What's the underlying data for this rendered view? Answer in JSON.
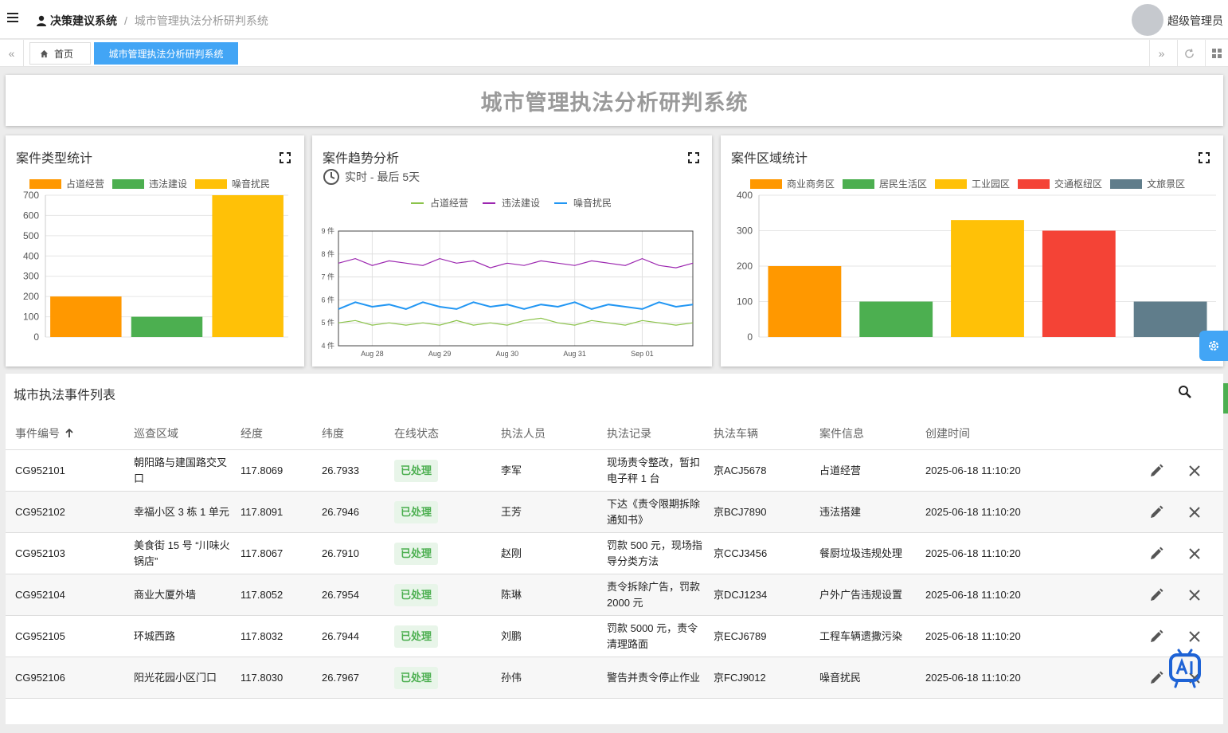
{
  "app": {
    "breadcrumb_root": "决策建议系统",
    "breadcrumb_sep": "/",
    "breadcrumb_current": "城市管理执法分析研判系统",
    "username": "超级管理员"
  },
  "tabs": [
    {
      "label": "首页",
      "icon": "home-icon"
    },
    {
      "label": "城市管理执法分析研判系统",
      "active": true
    }
  ],
  "page_title": "城市管理执法分析研判系统",
  "chart_data": [
    {
      "type": "bar",
      "title": "案件类型统计",
      "categories": [
        "占道经营",
        "违法建设",
        "噪音扰民"
      ],
      "values": [
        200,
        100,
        700
      ],
      "colors": [
        "#ff9800",
        "#4caf50",
        "#ffc107"
      ],
      "yticks": [
        0,
        100,
        200,
        300,
        400,
        500,
        600,
        700
      ],
      "ylim": [
        0,
        700
      ],
      "legend": "top",
      "grid": true
    },
    {
      "type": "line",
      "title": "案件趋势分析",
      "subtitle": "实时 - 最后 5天",
      "x": [
        "2025-08-27 12:00",
        "2025-08-27 18:00",
        "2025-08-28 00:00",
        "2025-08-28 06:00",
        "2025-08-28 12:00",
        "2025-08-28 18:00",
        "2025-08-29 00:00",
        "2025-08-29 06:00",
        "2025-08-29 12:00",
        "2025-08-29 18:00",
        "2025-08-30 00:00",
        "2025-08-30 06:00",
        "2025-08-30 12:00",
        "2025-08-30 18:00",
        "2025-08-31 00:00",
        "2025-08-31 06:00",
        "2025-08-31 12:00",
        "2025-08-31 18:00",
        "2025-09-01 00:00",
        "2025-09-01 06:00",
        "2025-09-01 12:00",
        "2025-09-01 18:00"
      ],
      "xticks": [
        "Aug 28",
        "Aug 29",
        "Aug 30",
        "Aug 31",
        "Sep 01"
      ],
      "yticks": [
        "4 件",
        "5 件",
        "6 件",
        "7 件",
        "8 件",
        "9 件"
      ],
      "ylim": [
        4,
        9
      ],
      "legend": "top",
      "grid": true,
      "series": [
        {
          "name": "占道经营",
          "color": "#8bc34a",
          "values": [
            5.0,
            5.1,
            4.9,
            5.0,
            4.9,
            5.0,
            4.9,
            5.1,
            4.9,
            5.0,
            4.9,
            5.1,
            5.2,
            5.0,
            4.9,
            5.1,
            5.0,
            4.9,
            5.1,
            5.0,
            4.9,
            5.0
          ]
        },
        {
          "name": "违法建设",
          "color": "#9c27b0",
          "values": [
            7.6,
            7.8,
            7.5,
            7.7,
            7.6,
            7.5,
            7.8,
            7.6,
            7.7,
            7.4,
            7.6,
            7.5,
            7.7,
            7.6,
            7.5,
            7.7,
            7.6,
            7.5,
            7.8,
            7.5,
            7.4,
            7.6
          ]
        },
        {
          "name": "噪音扰民",
          "color": "#2196f3",
          "values": [
            5.6,
            5.9,
            5.7,
            5.8,
            5.6,
            5.9,
            5.7,
            5.6,
            5.9,
            5.7,
            5.8,
            5.6,
            5.8,
            5.7,
            5.9,
            5.6,
            5.8,
            5.7,
            5.6,
            5.9,
            5.7,
            5.8
          ]
        }
      ]
    },
    {
      "type": "bar",
      "title": "案件区域统计",
      "categories": [
        "商业商务区",
        "居民生活区",
        "工业园区",
        "交通枢纽区",
        "文旅景区"
      ],
      "values": [
        200,
        100,
        330,
        300,
        100
      ],
      "colors": [
        "#ff9800",
        "#4caf50",
        "#ffc107",
        "#f44336",
        "#607d8b"
      ],
      "yticks": [
        0,
        100,
        200,
        300,
        400
      ],
      "ylim": [
        0,
        400
      ],
      "legend": "top",
      "grid": true
    }
  ],
  "table": {
    "title": "城市执法事件列表",
    "columns": [
      "事件编号",
      "巡查区域",
      "经度",
      "纬度",
      "在线状态",
      "执法人员",
      "执法记录",
      "执法车辆",
      "案件信息",
      "创建时间"
    ],
    "sort_icon": "arrow-up-icon",
    "rows": [
      {
        "id": "CG952101",
        "area": "朝阳路与建国路交叉口",
        "lng": "117.8069",
        "lat": "26.7933",
        "status": "已处理",
        "officer": "李军",
        "record": "现场责令整改，暂扣电子秤 1 台",
        "vehicle": "京ACJ5678",
        "info": "占道经营",
        "time": "2025-06-18 11:10:20"
      },
      {
        "id": "CG952102",
        "area": "幸福小区 3 栋 1 单元",
        "lng": "117.8091",
        "lat": "26.7946",
        "status": "已处理",
        "officer": "王芳",
        "record": "下达《责令限期拆除通知书》",
        "vehicle": "京BCJ7890",
        "info": "违法搭建",
        "time": "2025-06-18 11:10:20"
      },
      {
        "id": "CG952103",
        "area": "美食街 15 号 “川味火锅店”",
        "lng": "117.8067",
        "lat": "26.7910",
        "status": "已处理",
        "officer": "赵刚",
        "record": "罚款 500 元，现场指导分类方法",
        "vehicle": "京CCJ3456",
        "info": "餐厨垃圾违规处理",
        "time": "2025-06-18 11:10:20"
      },
      {
        "id": "CG952104",
        "area": "商业大厦外墙",
        "lng": "117.8052",
        "lat": "26.7954",
        "status": "已处理",
        "officer": "陈琳",
        "record": "责令拆除广告，罚款 2000 元",
        "vehicle": "京DCJ1234",
        "info": "户外广告违规设置",
        "time": "2025-06-18 11:10:20"
      },
      {
        "id": "CG952105",
        "area": "环城西路",
        "lng": "117.8032",
        "lat": "26.7944",
        "status": "已处理",
        "officer": "刘鹏",
        "record": "罚款 5000 元，责令清理路面",
        "vehicle": "京ECJ6789",
        "info": "工程车辆遗撒污染",
        "time": "2025-06-18 11:10:20"
      },
      {
        "id": "CG952106",
        "area": "阳光花园小区门口",
        "lng": "117.8030",
        "lat": "26.7967",
        "status": "已处理",
        "officer": "孙伟",
        "record": "警告并责令停止作业",
        "vehicle": "京FCJ9012",
        "info": "噪音扰民",
        "time": "2025-06-18 11:10:20"
      }
    ]
  },
  "colors": {
    "accent": "#42a5f5",
    "status_bg": "#e8f5e9",
    "status_text": "#4caf50",
    "float_settings": "#42a5f5",
    "float_support": "#4caf50"
  }
}
